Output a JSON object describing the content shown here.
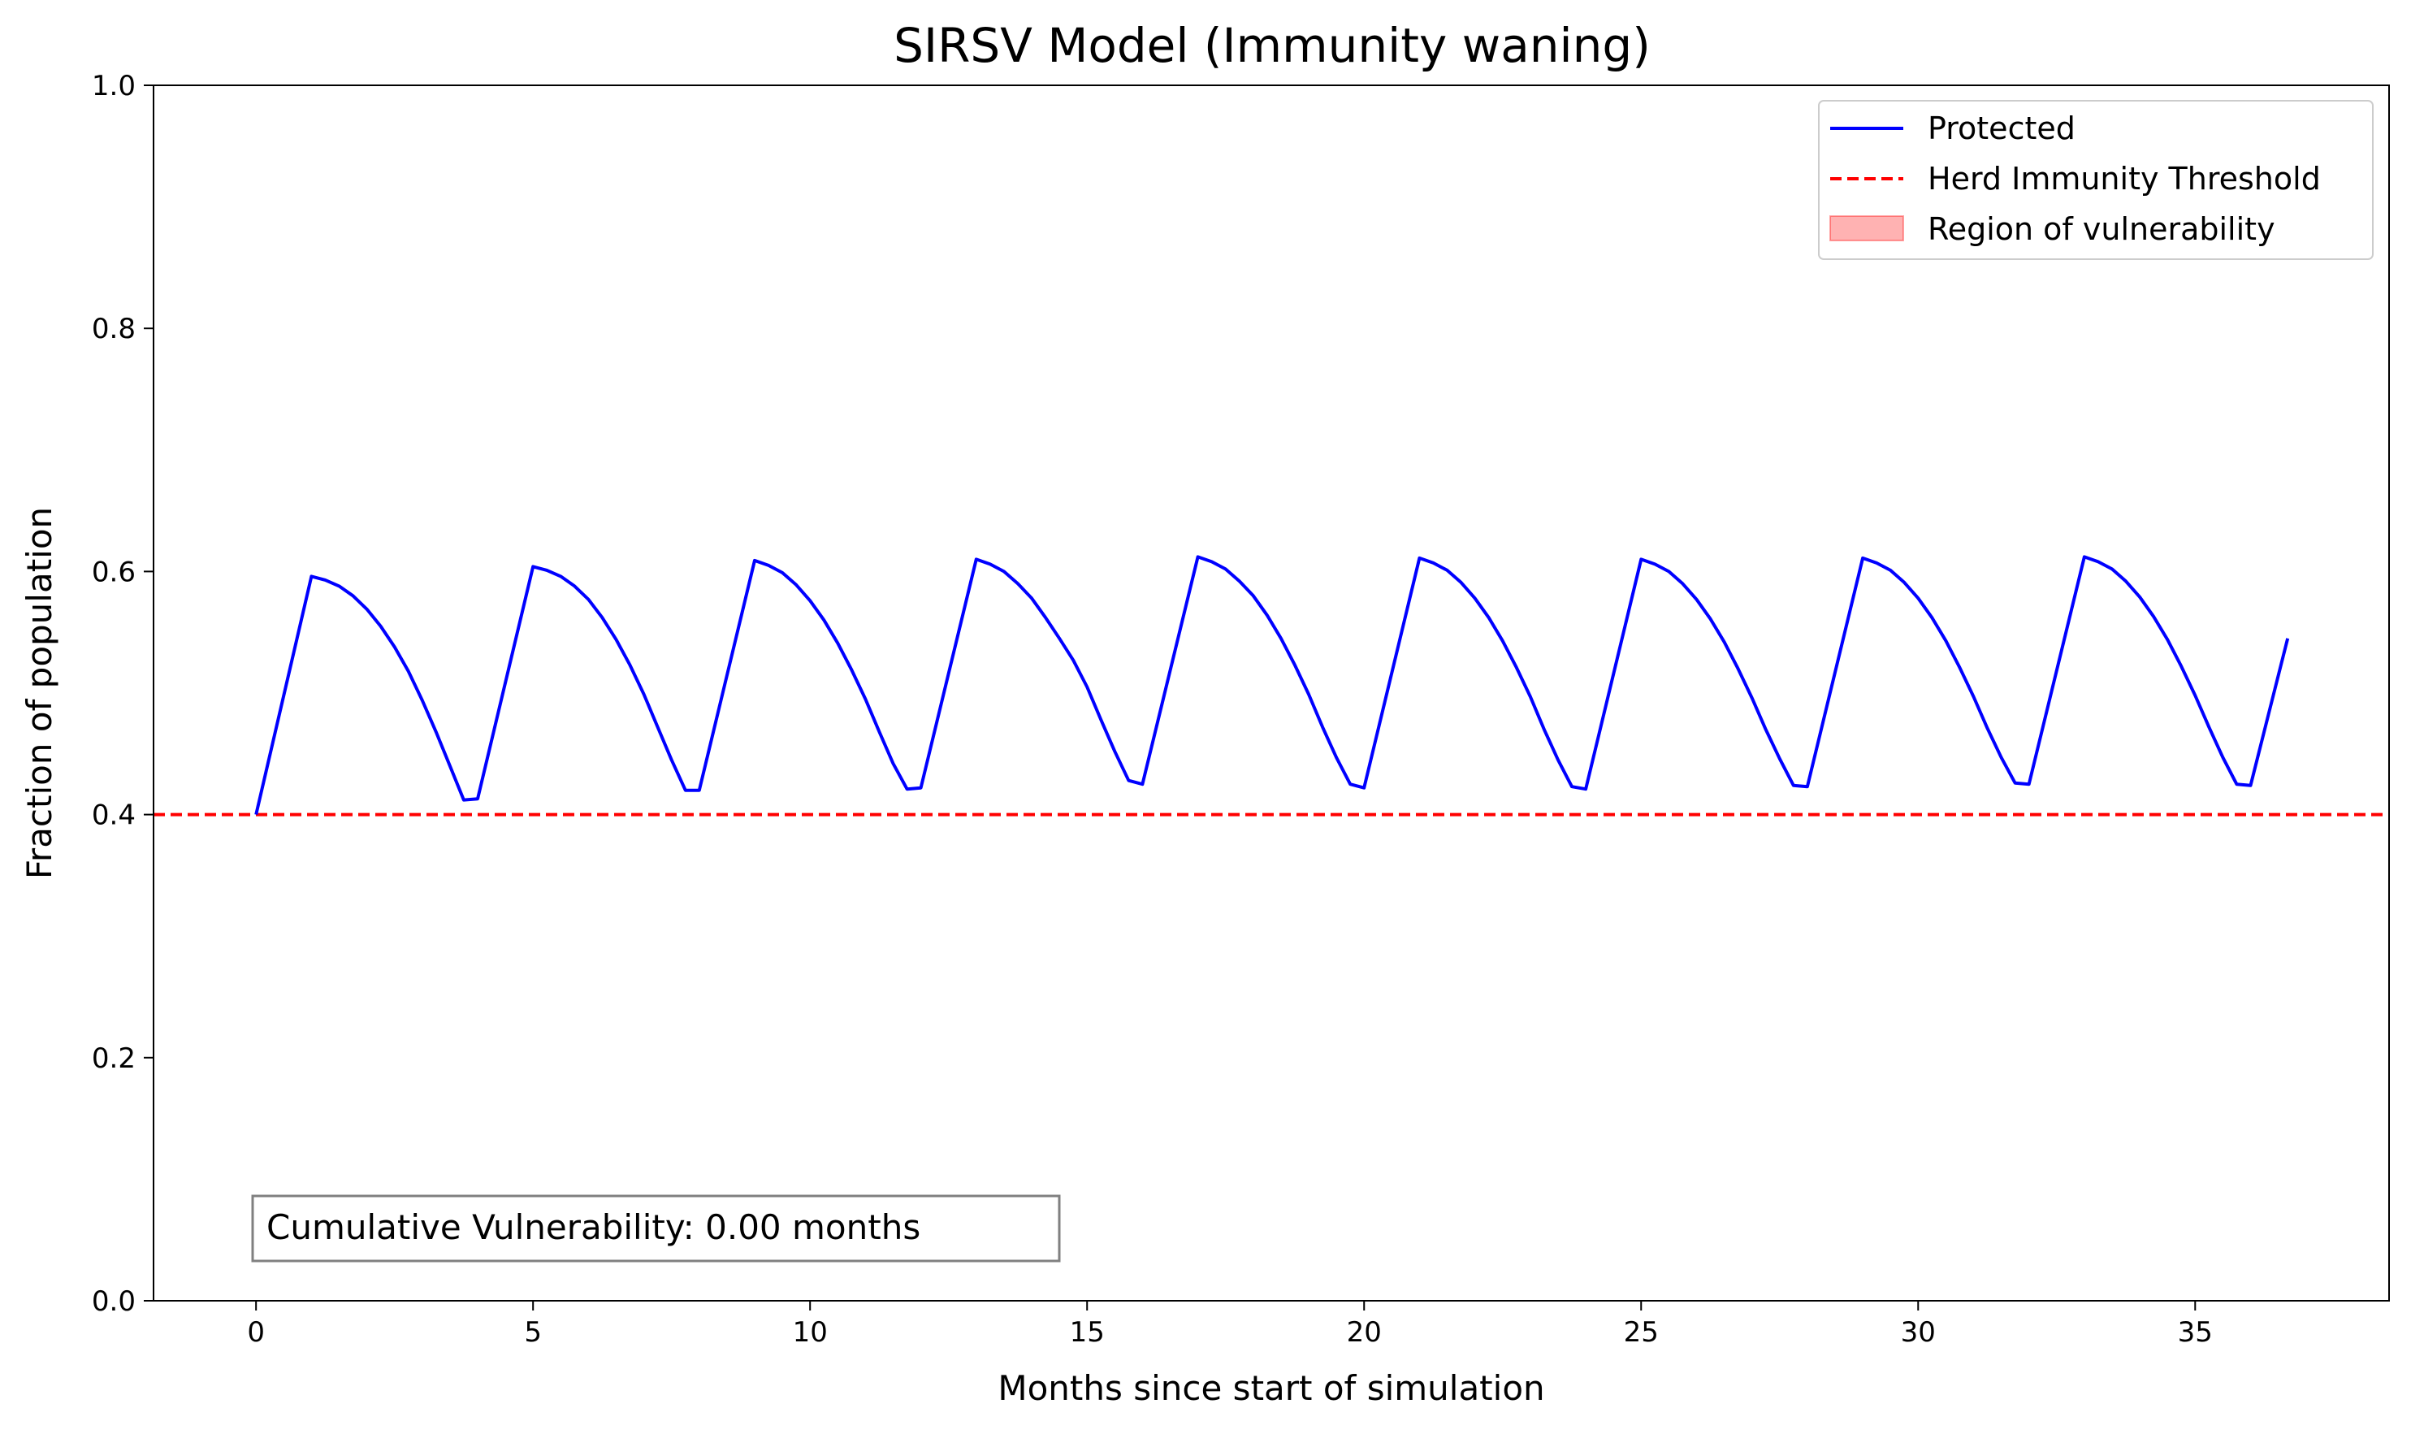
{
  "chart_data": {
    "type": "line",
    "title": "SIRSV Model (Immunity waning)",
    "xlabel": "Months since start of simulation",
    "ylabel": "Fraction of population",
    "xlim": [
      -1.85,
      38.5
    ],
    "ylim": [
      0.0,
      1.0
    ],
    "xticks": [
      0,
      5,
      10,
      15,
      20,
      25,
      30,
      35
    ],
    "xtick_labels": [
      "0",
      "5",
      "10",
      "15",
      "20",
      "25",
      "30",
      "35"
    ],
    "yticks": [
      0.0,
      0.2,
      0.4,
      0.6,
      0.8,
      1.0
    ],
    "ytick_labels": [
      "0.0",
      "0.2",
      "0.4",
      "0.6",
      "0.8",
      "1.0"
    ],
    "grid": false,
    "legend_position": "top-right",
    "annotation": "Cumulative Vulnerability: 0.00 months",
    "series": [
      {
        "name": "Protected",
        "style": "solid",
        "color": "#0000ff",
        "x": [
          0,
          1,
          1.25,
          1.5,
          1.75,
          2,
          2.25,
          2.5,
          2.75,
          3,
          3.25,
          3.5,
          3.75,
          4,
          5,
          5.25,
          5.5,
          5.75,
          6,
          6.25,
          6.5,
          6.75,
          7,
          7.25,
          7.5,
          7.75,
          8,
          9,
          9.25,
          9.5,
          9.75,
          10,
          10.25,
          10.5,
          10.75,
          11,
          11.25,
          11.5,
          11.75,
          12,
          13,
          13.25,
          13.5,
          13.75,
          14,
          14.25,
          14.5,
          14.75,
          15,
          15.25,
          15.5,
          15.75,
          16,
          17,
          17.25,
          17.5,
          17.75,
          18,
          18.25,
          18.5,
          18.75,
          19,
          19.25,
          19.5,
          19.75,
          20,
          21,
          21.25,
          21.5,
          21.75,
          22,
          22.25,
          22.5,
          22.75,
          23,
          23.25,
          23.5,
          23.75,
          24,
          25,
          25.25,
          25.5,
          25.75,
          26,
          26.25,
          26.5,
          26.75,
          27,
          27.25,
          27.5,
          27.75,
          28,
          29,
          29.25,
          29.5,
          29.75,
          30,
          30.25,
          30.5,
          30.75,
          31,
          31.25,
          31.5,
          31.75,
          32,
          33,
          33.25,
          33.5,
          33.75,
          34,
          34.25,
          34.5,
          34.75,
          35,
          35.25,
          35.5,
          35.75,
          36,
          36.67
        ],
        "y": [
          0.4,
          0.596,
          0.593,
          0.588,
          0.58,
          0.569,
          0.555,
          0.538,
          0.518,
          0.494,
          0.468,
          0.44,
          0.412,
          0.413,
          0.604,
          0.601,
          0.596,
          0.588,
          0.577,
          0.562,
          0.544,
          0.523,
          0.499,
          0.472,
          0.445,
          0.42,
          0.42,
          0.609,
          0.605,
          0.599,
          0.589,
          0.576,
          0.56,
          0.541,
          0.519,
          0.495,
          0.468,
          0.442,
          0.421,
          0.422,
          0.61,
          0.606,
          0.6,
          0.59,
          0.578,
          0.562,
          0.545,
          0.527,
          0.505,
          0.478,
          0.452,
          0.428,
          0.425,
          0.612,
          0.608,
          0.602,
          0.592,
          0.58,
          0.564,
          0.545,
          0.523,
          0.499,
          0.472,
          0.447,
          0.425,
          0.422,
          0.611,
          0.607,
          0.601,
          0.591,
          0.578,
          0.562,
          0.543,
          0.521,
          0.497,
          0.47,
          0.445,
          0.423,
          0.421,
          0.61,
          0.606,
          0.6,
          0.59,
          0.577,
          0.561,
          0.542,
          0.52,
          0.496,
          0.47,
          0.446,
          0.424,
          0.423,
          0.611,
          0.607,
          0.601,
          0.591,
          0.578,
          0.562,
          0.543,
          0.521,
          0.497,
          0.471,
          0.447,
          0.426,
          0.425,
          0.612,
          0.608,
          0.602,
          0.592,
          0.579,
          0.563,
          0.544,
          0.522,
          0.498,
          0.472,
          0.447,
          0.425,
          0.424,
          0.545
        ]
      },
      {
        "name": "Herd Immunity Threshold",
        "style": "dashed",
        "color": "#ff0000",
        "y": 0.4
      },
      {
        "name": "Region of vulnerability",
        "style": "fill",
        "color": "#ff0000",
        "fill_opacity": 0.3,
        "values": []
      }
    ]
  }
}
